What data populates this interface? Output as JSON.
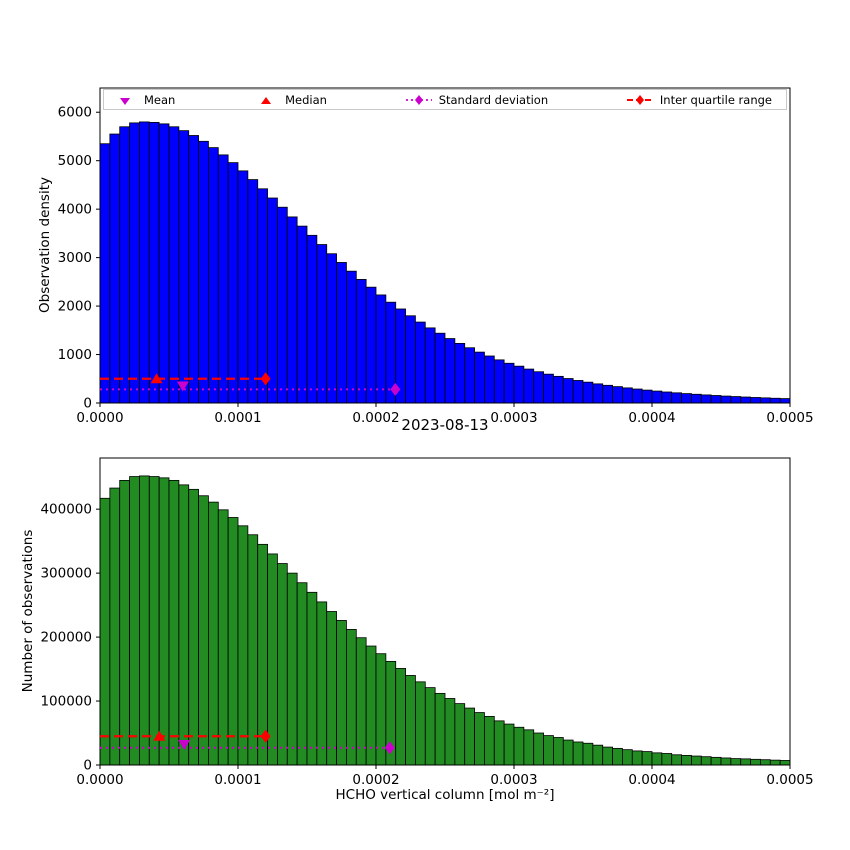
{
  "title": "2023-08-13",
  "colors": {
    "mean": "#cc00cc",
    "median": "#ff0000",
    "std": "#cc00cc",
    "iqr": "#ff0000"
  },
  "legend": {
    "items": [
      {
        "label": "Mean",
        "marker": "triangle-down",
        "color": "#cc00cc"
      },
      {
        "label": "Median",
        "marker": "triangle-up",
        "color": "#ff0000"
      },
      {
        "label": "Standard deviation",
        "marker": "diamond",
        "line": "dotted",
        "color": "#cc00cc"
      },
      {
        "label": "Inter quartile range",
        "marker": "diamond",
        "line": "dashed",
        "color": "#ff0000"
      }
    ]
  },
  "chart_data": [
    {
      "type": "bar",
      "subtype": "histogram",
      "title": "",
      "ylabel": "Observation density",
      "xlabel": "",
      "legend": [
        "Mean",
        "Median",
        "Standard deviation",
        "Inter quartile range"
      ],
      "bar_color": "#0000ff",
      "bar_edge_color": "#000000",
      "xlim": [
        0,
        0.0005
      ],
      "ylim": [
        0,
        6500
      ],
      "bin_width": 7.142857e-06,
      "xticks": [
        {
          "value": 0.0,
          "label": "0.0000"
        },
        {
          "value": 0.0001,
          "label": "0.0001"
        },
        {
          "value": 0.0002,
          "label": "0.0002"
        },
        {
          "value": 0.0003,
          "label": "0.0003"
        },
        {
          "value": 0.0004,
          "label": "0.0004"
        },
        {
          "value": 0.0005,
          "label": "0.0005"
        }
      ],
      "yticks": [
        {
          "value": 0,
          "label": "0"
        },
        {
          "value": 1000,
          "label": "1000"
        },
        {
          "value": 2000,
          "label": "2000"
        },
        {
          "value": 3000,
          "label": "3000"
        },
        {
          "value": 4000,
          "label": "4000"
        },
        {
          "value": 5000,
          "label": "5000"
        },
        {
          "value": 6000,
          "label": "6000"
        }
      ],
      "values": [
        5350,
        5550,
        5700,
        5780,
        5800,
        5790,
        5760,
        5700,
        5620,
        5520,
        5400,
        5270,
        5120,
        4960,
        4790,
        4610,
        4420,
        4230,
        4040,
        3840,
        3650,
        3460,
        3270,
        3080,
        2900,
        2720,
        2550,
        2390,
        2230,
        2080,
        1940,
        1800,
        1670,
        1550,
        1440,
        1330,
        1230,
        1140,
        1050,
        970,
        890,
        820,
        760,
        700,
        645,
        595,
        550,
        505,
        465,
        430,
        395,
        365,
        338,
        312,
        288,
        266,
        246,
        227,
        210,
        194,
        180,
        167,
        155,
        143,
        133,
        123,
        114,
        106,
        98,
        91
      ],
      "markers": {
        "mean": {
          "x": 6e-05,
          "y": 350
        },
        "median": {
          "x": 4.1e-05,
          "y": 500
        },
        "std": {
          "x_start": 0.0,
          "x_end": 0.000214,
          "y": 280
        },
        "iqr": {
          "x_start": 0.0,
          "x_end": 0.00012,
          "y": 500
        }
      }
    },
    {
      "type": "bar",
      "subtype": "histogram",
      "title": "2023-08-13",
      "ylabel": "Number of observations",
      "xlabel": "HCHO vertical column [mol m⁻²]",
      "legend": [
        "Mean",
        "Median",
        "Standard deviation",
        "Inter quartile range"
      ],
      "bar_color": "#228B22",
      "bar_edge_color": "#000000",
      "xlim": [
        0,
        0.0005
      ],
      "ylim": [
        0,
        480000
      ],
      "bin_width": 7.142857e-06,
      "xticks": [
        {
          "value": 0.0,
          "label": "0.0000"
        },
        {
          "value": 0.0001,
          "label": "0.0001"
        },
        {
          "value": 0.0002,
          "label": "0.0002"
        },
        {
          "value": 0.0003,
          "label": "0.0003"
        },
        {
          "value": 0.0004,
          "label": "0.0004"
        },
        {
          "value": 0.0005,
          "label": "0.0005"
        }
      ],
      "yticks": [
        {
          "value": 0,
          "label": "0"
        },
        {
          "value": 100000,
          "label": "100000"
        },
        {
          "value": 200000,
          "label": "200000"
        },
        {
          "value": 300000,
          "label": "300000"
        },
        {
          "value": 400000,
          "label": "400000"
        }
      ],
      "values": [
        417000,
        433000,
        445000,
        451000,
        452000,
        451000,
        449000,
        445000,
        438000,
        431000,
        421000,
        411000,
        399000,
        387000,
        374000,
        360000,
        345000,
        330000,
        315000,
        300000,
        285000,
        270000,
        255000,
        240000,
        226000,
        212000,
        199000,
        186000,
        174000,
        162000,
        151000,
        140000,
        130000,
        121000,
        112000,
        104000,
        96000,
        89000,
        82000,
        76000,
        69000,
        64000,
        59000,
        55000,
        50000,
        46000,
        43000,
        39000,
        36000,
        34000,
        31000,
        28000,
        26000,
        24000,
        22000,
        21000,
        19000,
        18000,
        16000,
        15000,
        14000,
        13000,
        12000,
        11000,
        10000,
        9600,
        8900,
        8300,
        7600,
        7100
      ],
      "markers": {
        "mean": {
          "x": 6.1e-05,
          "y": 32000
        },
        "median": {
          "x": 4.3e-05,
          "y": 45000
        },
        "std": {
          "x_start": 0.0,
          "x_end": 0.00021,
          "y": 27000
        },
        "iqr": {
          "x_start": 0.0,
          "x_end": 0.00012,
          "y": 45000
        }
      }
    }
  ]
}
